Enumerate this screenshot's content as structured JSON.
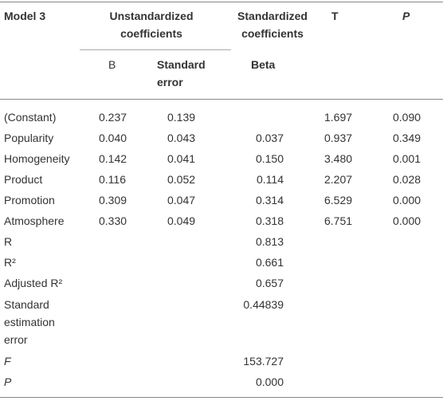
{
  "table": {
    "header": {
      "model": "Model 3",
      "unstandardized": "Unstandardized coefficients",
      "standardized": "Standardized coefficients",
      "t": "T",
      "p": "P",
      "b": "B",
      "se": "Standard error",
      "beta": "Beta"
    },
    "rows": [
      [
        "(Constant)",
        "0.237",
        "0.139",
        null,
        "1.697",
        "0.090"
      ],
      [
        "Popularity",
        "0.040",
        "0.043",
        "0.037",
        "0.937",
        "0.349"
      ],
      [
        "Homogeneity",
        "0.142",
        "0.041",
        "0.150",
        "3.480",
        "0.001"
      ],
      [
        "Product",
        "0.116",
        "0.052",
        "0.114",
        "2.207",
        "0.028"
      ],
      [
        "Promotion",
        "0.309",
        "0.047",
        "0.314",
        "6.529",
        "0.000"
      ],
      [
        "Atmosphere",
        "0.330",
        "0.049",
        "0.318",
        "6.751",
        "0.000"
      ],
      [
        "R",
        null,
        null,
        "0.813",
        null,
        null
      ],
      [
        "R²",
        null,
        null,
        "0.661",
        null,
        null
      ],
      [
        "Adjusted R²",
        null,
        null,
        "0.657",
        null,
        null
      ],
      [
        "Standard estimation error",
        null,
        null,
        "0.44839",
        null,
        null
      ],
      [
        "F",
        null,
        null,
        "153.727",
        null,
        null
      ],
      [
        "P",
        null,
        null,
        "0.000",
        null,
        null
      ]
    ]
  }
}
